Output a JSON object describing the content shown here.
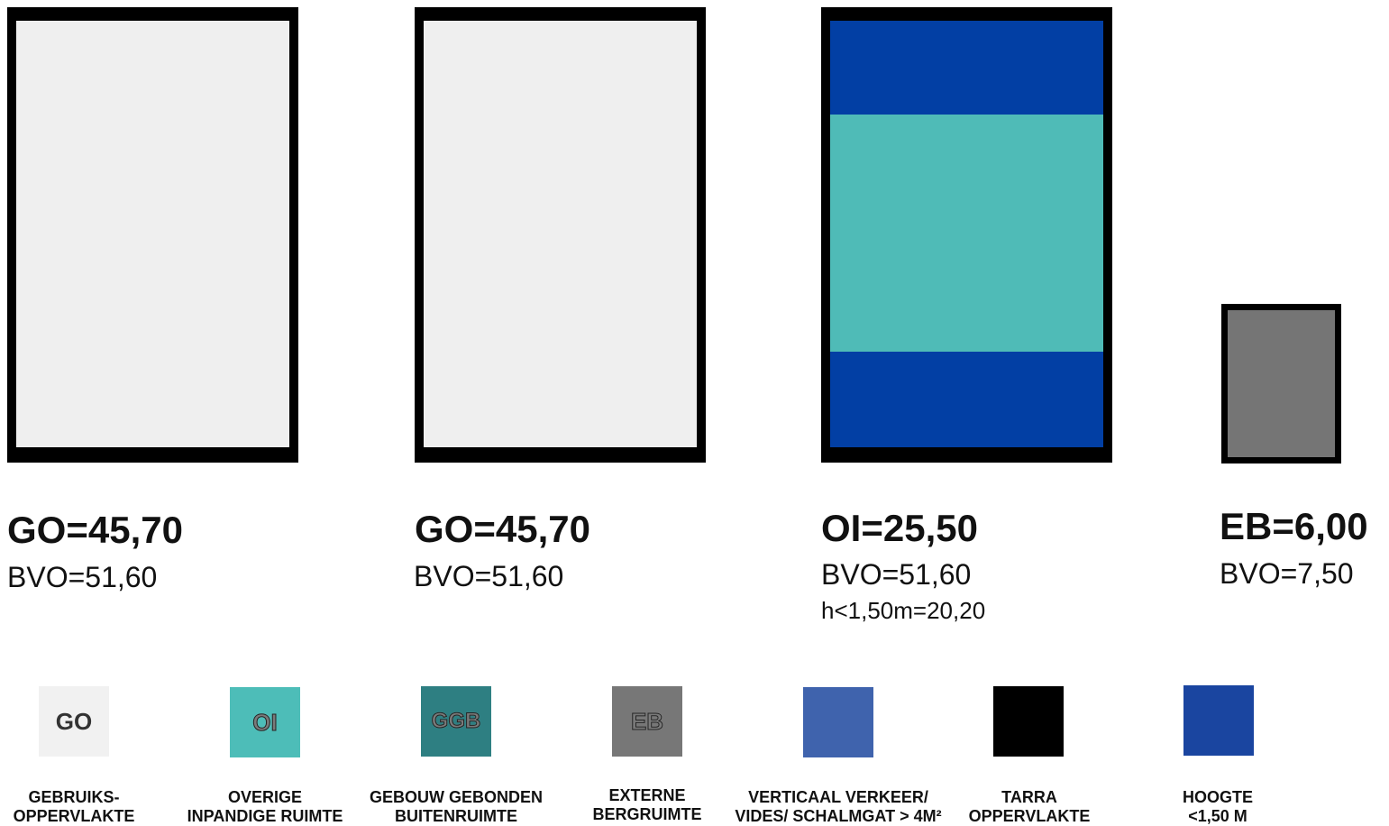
{
  "rooms": [
    {
      "primary": "GO=45,70",
      "bvo": "BVO=51,60",
      "fill": "#efefef"
    },
    {
      "primary": "GO=45,70",
      "bvo": "BVO=51,60",
      "fill": "#efefef"
    },
    {
      "primary": "OI=25,50",
      "bvo": "BVO=51,60",
      "extra": "h<1,50m=20,20",
      "fill": "#023fa4",
      "band_fill": "#4fbbb7"
    },
    {
      "primary": "EB=6,00",
      "bvo": "BVO=7,50",
      "fill": "#757575"
    }
  ],
  "legend": [
    {
      "code": "GO",
      "color": "#f1f1f1",
      "text_color": "#333333",
      "line1": "GEBRUIKS-",
      "line2": "OPPERVLAKTE"
    },
    {
      "code": "OI",
      "color": "#4dbdb8",
      "text_color": "#7a7a7a",
      "line1": "OVERIGE",
      "line2": "INPANDIGE RUIMTE"
    },
    {
      "code": "GGB",
      "color": "#2e7f82",
      "text_color": "#7a7a7a",
      "line1": "GEBOUW GEBONDEN",
      "line2": "BUITENRUIMTE"
    },
    {
      "code": "EB",
      "color": "#777777",
      "text_color": "#7a7a7a",
      "line1": "EXTERNE",
      "line2": "BERGRUIMTE"
    },
    {
      "code": "",
      "color": "#3f63ad",
      "text_color": "#ffffff",
      "line1": "VERTICAAL VERKEER/",
      "line2": "VIDES/ SCHALMGAT > 4M²"
    },
    {
      "code": "",
      "color": "#000000",
      "text_color": "#ffffff",
      "line1": "TARRA",
      "line2": "OPPERVLAKTE"
    },
    {
      "code": "",
      "color": "#1a45a0",
      "text_color": "#ffffff",
      "line1": "HOOGTE",
      "line2": "<1,50 M"
    }
  ]
}
